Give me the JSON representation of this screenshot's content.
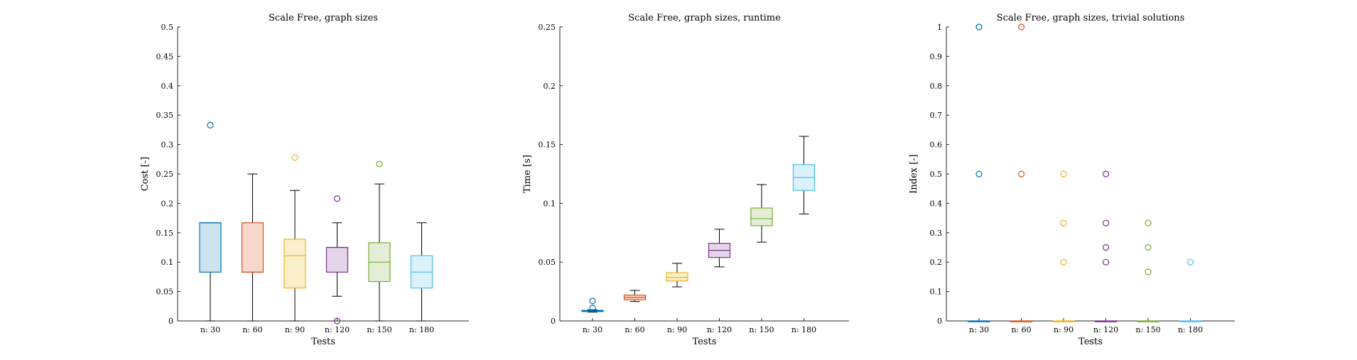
{
  "chart_data": [
    {
      "type": "boxplot",
      "title": "Scale Free, graph sizes",
      "xlabel": "Tests",
      "ylabel": "Cost [-]",
      "ylim": [
        0,
        0.5
      ],
      "yticks": [
        0,
        0.05,
        0.1,
        0.15,
        0.2,
        0.25,
        0.3,
        0.35,
        0.4,
        0.45,
        0.5
      ],
      "ytick_labels": [
        "0",
        "0.05",
        "0.1",
        "0.15",
        "0.2",
        "0.25",
        "0.3",
        "0.35",
        "0.4",
        "0.45",
        "0.5"
      ],
      "categories": [
        "n: 30",
        "n: 60",
        "n: 90",
        "n: 120",
        "n: 150",
        "n: 180"
      ],
      "boxes": [
        {
          "whisker_low": 0,
          "q1": 0.083,
          "median": 0.167,
          "q3": 0.167,
          "whisker_high": 0.167,
          "outliers": [
            0.333
          ]
        },
        {
          "whisker_low": 0,
          "q1": 0.083,
          "median": 0.083,
          "q3": 0.167,
          "whisker_high": 0.25,
          "outliers": []
        },
        {
          "whisker_low": 0,
          "q1": 0.056,
          "median": 0.111,
          "q3": 0.139,
          "whisker_high": 0.222,
          "outliers": [
            0.278
          ]
        },
        {
          "whisker_low": 0.042,
          "q1": 0.083,
          "median": 0.125,
          "q3": 0.125,
          "whisker_high": 0.167,
          "outliers": [
            0.208,
            0
          ]
        },
        {
          "whisker_low": 0,
          "q1": 0.067,
          "median": 0.1,
          "q3": 0.133,
          "whisker_high": 0.233,
          "outliers": [
            0.267
          ]
        },
        {
          "whisker_low": 0,
          "q1": 0.056,
          "median": 0.083,
          "q3": 0.111,
          "whisker_high": 0.167,
          "outliers": []
        }
      ]
    },
    {
      "type": "boxplot",
      "title": "Scale Free, graph sizes, runtime",
      "xlabel": "Tests",
      "ylabel": "Time [s]",
      "ylim": [
        0,
        0.25
      ],
      "yticks": [
        0,
        0.05,
        0.1,
        0.15,
        0.2,
        0.25
      ],
      "ytick_labels": [
        "0",
        "0.05",
        "0.1",
        "0.15",
        "0.2",
        "0.25"
      ],
      "categories": [
        "n: 30",
        "n: 60",
        "n: 90",
        "n: 120",
        "n: 150",
        "n: 180"
      ],
      "boxes": [
        {
          "whisker_low": 0.0075,
          "q1": 0.008,
          "median": 0.0085,
          "q3": 0.009,
          "whisker_high": 0.0095,
          "outliers": [
            0.011,
            0.017
          ]
        },
        {
          "whisker_low": 0.0165,
          "q1": 0.018,
          "median": 0.02,
          "q3": 0.022,
          "whisker_high": 0.026,
          "outliers": []
        },
        {
          "whisker_low": 0.029,
          "q1": 0.034,
          "median": 0.037,
          "q3": 0.041,
          "whisker_high": 0.049,
          "outliers": []
        },
        {
          "whisker_low": 0.046,
          "q1": 0.054,
          "median": 0.06,
          "q3": 0.066,
          "whisker_high": 0.078,
          "outliers": []
        },
        {
          "whisker_low": 0.067,
          "q1": 0.081,
          "median": 0.087,
          "q3": 0.096,
          "whisker_high": 0.116,
          "outliers": []
        },
        {
          "whisker_low": 0.091,
          "q1": 0.111,
          "median": 0.122,
          "q3": 0.133,
          "whisker_high": 0.157,
          "outliers": []
        }
      ]
    },
    {
      "type": "boxplot",
      "title": "Scale Free, graph sizes, trivial solutions",
      "xlabel": "Tests",
      "ylabel": "Index [-]",
      "ylim": [
        0,
        1
      ],
      "yticks": [
        0,
        0.1,
        0.2,
        0.3,
        0.4,
        0.5,
        0.6,
        0.7,
        0.8,
        0.9,
        1
      ],
      "ytick_labels": [
        "0",
        "0.1",
        "0.2",
        "0.3",
        "0.4",
        "0.5",
        "0.6",
        "0.7",
        "0.8",
        "0.9",
        "1"
      ],
      "categories": [
        "n: 30",
        "n: 60",
        "n: 90",
        "n: 120",
        "n: 150",
        "n: 180"
      ],
      "boxes": [
        {
          "whisker_low": 0,
          "q1": 0,
          "median": 0,
          "q3": 0,
          "whisker_high": 0,
          "outliers": [
            1,
            0.5
          ]
        },
        {
          "whisker_low": 0,
          "q1": 0,
          "median": 0,
          "q3": 0,
          "whisker_high": 0,
          "outliers": [
            1,
            0.5
          ]
        },
        {
          "whisker_low": 0,
          "q1": 0,
          "median": 0,
          "q3": 0,
          "whisker_high": 0,
          "outliers": [
            0.5,
            0.333,
            0.2
          ]
        },
        {
          "whisker_low": 0,
          "q1": 0,
          "median": 0,
          "q3": 0,
          "whisker_high": 0,
          "outliers": [
            0.5,
            0.333,
            0.25,
            0.2
          ]
        },
        {
          "whisker_low": 0,
          "q1": 0,
          "median": 0,
          "q3": 0,
          "whisker_high": 0,
          "outliers": [
            0.333,
            0.25,
            0.167
          ]
        },
        {
          "whisker_low": 0,
          "q1": 0,
          "median": 0,
          "q3": 0,
          "whisker_high": 0,
          "outliers": [
            0.2
          ]
        }
      ]
    }
  ],
  "colors": {
    "series_edge": [
      "#0072BD",
      "#D95319",
      "#EDB120",
      "#7E2F8E",
      "#77AC30",
      "#4DBEEE"
    ],
    "series_fill": [
      "#cce3f0",
      "#f7d9cc",
      "#fbefcc",
      "#e5d5e8",
      "#e4eed6",
      "#dbf2fc"
    ],
    "axis": "#262626",
    "whisker": "#000000"
  }
}
